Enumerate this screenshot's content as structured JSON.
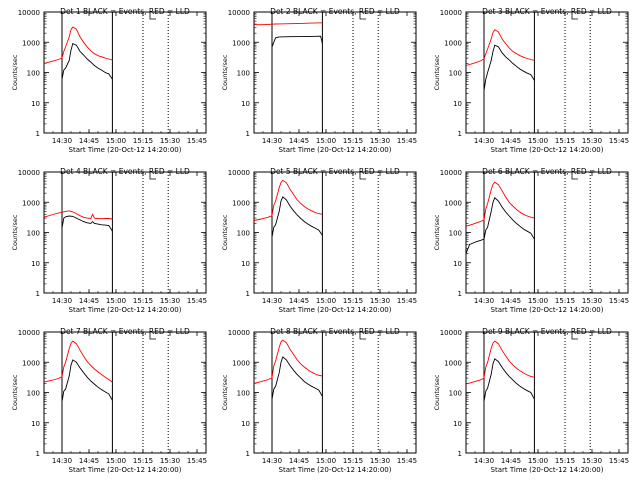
{
  "figure": {
    "ylabel": "Counts/sec",
    "xlabel": "Start Time (20-Oct-12 14:20:00)",
    "yticks": [
      "1",
      "10",
      "100",
      "1000",
      "10000"
    ],
    "xticks": [
      "14:30",
      "14:45",
      "15:00",
      "15:15",
      "15:30",
      "15:45"
    ],
    "colors": {
      "events": "#000000",
      "lld": "#ff0000",
      "axes": "#000000"
    }
  },
  "chart_data": [
    {
      "type": "line",
      "title": "Det 1 BLACK = Events, RED = LLD",
      "xlabel": "Start Time (20-Oct-12 14:20:00)",
      "ylabel": "Counts/sec",
      "yscale": "log",
      "ylim": [
        1,
        10000
      ],
      "x_range_minutes": [
        0,
        90
      ],
      "vlines_solid": [
        10,
        38
      ],
      "vlines_dotted": [
        55,
        69
      ],
      "series": [
        {
          "name": "Events",
          "color": "#000000",
          "x": [
            10,
            11,
            12,
            14,
            15,
            16,
            18,
            20,
            22,
            24,
            26,
            28,
            30,
            32,
            34,
            36,
            38
          ],
          "y": [
            60,
            120,
            140,
            250,
            550,
            900,
            800,
            500,
            380,
            280,
            220,
            170,
            140,
            120,
            100,
            90,
            60
          ]
        },
        {
          "name": "LLD",
          "color": "#ff0000",
          "x": [
            0,
            4,
            8,
            10,
            11,
            12,
            14,
            15,
            16,
            18,
            20,
            22,
            24,
            26,
            28,
            30,
            32,
            34,
            36,
            38
          ],
          "y": [
            200,
            230,
            270,
            300,
            500,
            700,
            1500,
            2600,
            3200,
            2700,
            1500,
            1000,
            700,
            520,
            420,
            360,
            330,
            300,
            280,
            260
          ]
        }
      ]
    },
    {
      "type": "line",
      "title": "Det 2 BLACK = Events, RED = LLD",
      "xlabel": "Start Time (20-Oct-12 14:20:00)",
      "ylabel": "Counts/sec",
      "yscale": "log",
      "ylim": [
        1,
        10000
      ],
      "x_range_minutes": [
        0,
        90
      ],
      "vlines_solid": [
        10,
        38
      ],
      "vlines_dotted": [
        55,
        69
      ],
      "series": [
        {
          "name": "Events",
          "color": "#000000",
          "x": [
            10,
            11,
            12,
            14,
            20,
            26,
            32,
            37,
            38
          ],
          "y": [
            700,
            1000,
            1400,
            1500,
            1520,
            1540,
            1560,
            1580,
            900
          ]
        },
        {
          "name": "LLD",
          "color": "#ff0000",
          "x": [
            0,
            4,
            8,
            10,
            12,
            14,
            20,
            26,
            32,
            38
          ],
          "y": [
            3800,
            3800,
            3900,
            3950,
            4000,
            4050,
            4100,
            4200,
            4300,
            4400
          ]
        }
      ]
    },
    {
      "type": "line",
      "title": "Det 3 BLACK = Events, RED = LLD",
      "xlabel": "Start Time (20-Oct-12 14:20:00)",
      "ylabel": "Counts/sec",
      "yscale": "log",
      "ylim": [
        1,
        10000
      ],
      "x_range_minutes": [
        0,
        90
      ],
      "vlines_solid": [
        10,
        38
      ],
      "vlines_dotted": [
        55,
        69
      ],
      "series": [
        {
          "name": "Events",
          "color": "#000000",
          "x": [
            10,
            11,
            12,
            14,
            15,
            16,
            18,
            20,
            22,
            24,
            26,
            28,
            30,
            32,
            34,
            36,
            38
          ],
          "y": [
            25,
            60,
            100,
            250,
            500,
            800,
            700,
            450,
            330,
            260,
            200,
            160,
            130,
            110,
            95,
            85,
            55
          ]
        },
        {
          "name": "LLD",
          "color": "#ff0000",
          "x": [
            0,
            4,
            8,
            10,
            11,
            12,
            14,
            15,
            16,
            18,
            20,
            22,
            24,
            26,
            28,
            30,
            32,
            34,
            36,
            38
          ],
          "y": [
            170,
            200,
            240,
            280,
            420,
            600,
            1300,
            2100,
            2600,
            2200,
            1300,
            900,
            650,
            500,
            420,
            360,
            320,
            290,
            270,
            250
          ]
        }
      ]
    },
    {
      "type": "line",
      "title": "Det 4 BLACK = Events, RED = LLD",
      "xlabel": "Start Time (20-Oct-12 14:20:00)",
      "ylabel": "Counts/sec",
      "yscale": "log",
      "ylim": [
        1,
        10000
      ],
      "x_range_minutes": [
        0,
        90
      ],
      "vlines_solid": [
        10,
        38
      ],
      "vlines_dotted": [
        55,
        69
      ],
      "series": [
        {
          "name": "Events",
          "color": "#000000",
          "x": [
            10,
            11,
            12,
            14,
            16,
            18,
            20,
            22,
            24,
            26,
            27,
            28,
            30,
            32,
            34,
            36,
            38
          ],
          "y": [
            140,
            300,
            330,
            350,
            340,
            300,
            260,
            230,
            210,
            200,
            230,
            200,
            190,
            180,
            175,
            170,
            110
          ]
        },
        {
          "name": "LLD",
          "color": "#ff0000",
          "x": [
            0,
            4,
            8,
            10,
            12,
            14,
            16,
            18,
            20,
            22,
            24,
            26,
            27,
            28,
            30,
            32,
            34,
            36,
            38
          ],
          "y": [
            320,
            380,
            440,
            470,
            500,
            520,
            480,
            420,
            360,
            320,
            300,
            290,
            400,
            300,
            290,
            285,
            290,
            290,
            280
          ]
        }
      ]
    },
    {
      "type": "line",
      "title": "Det 5 BLACK = Events, RED = LLD",
      "xlabel": "Start Time (20-Oct-12 14:20:00)",
      "ylabel": "Counts/sec",
      "yscale": "log",
      "ylim": [
        1,
        10000
      ],
      "x_range_minutes": [
        0,
        90
      ],
      "vlines_solid": [
        10,
        38
      ],
      "vlines_dotted": [
        55,
        69
      ],
      "series": [
        {
          "name": "Events",
          "color": "#000000",
          "x": [
            10,
            11,
            12,
            14,
            15,
            16,
            18,
            20,
            22,
            24,
            26,
            28,
            30,
            32,
            34,
            36,
            38
          ],
          "y": [
            70,
            150,
            180,
            500,
            1100,
            1500,
            1200,
            750,
            520,
            380,
            290,
            230,
            190,
            160,
            140,
            120,
            80
          ]
        },
        {
          "name": "LLD",
          "color": "#ff0000",
          "x": [
            0,
            4,
            8,
            10,
            11,
            12,
            14,
            15,
            16,
            18,
            20,
            22,
            24,
            26,
            28,
            30,
            32,
            34,
            36,
            38
          ],
          "y": [
            250,
            280,
            320,
            360,
            800,
            1100,
            3000,
            4500,
            5300,
            4400,
            2700,
            1800,
            1200,
            900,
            720,
            600,
            520,
            460,
            420,
            400
          ]
        }
      ]
    },
    {
      "type": "line",
      "title": "Det 6 BLACK = Events, RED = LLD",
      "xlabel": "Start Time (20-Oct-12 14:20:00)",
      "ylabel": "Counts/sec",
      "yscale": "log",
      "ylim": [
        1,
        10000
      ],
      "x_range_minutes": [
        0,
        90
      ],
      "vlines_solid": [
        10,
        38
      ],
      "vlines_dotted": [
        55,
        69
      ],
      "series": [
        {
          "name": "Events",
          "color": "#000000",
          "x": [
            0,
            2,
            4,
            6,
            8,
            10,
            11,
            12,
            14,
            15,
            16,
            18,
            20,
            22,
            24,
            26,
            28,
            30,
            32,
            34,
            36,
            38
          ],
          "y": [
            20,
            40,
            45,
            50,
            55,
            60,
            120,
            150,
            500,
            1000,
            1400,
            1100,
            700,
            480,
            350,
            260,
            200,
            160,
            130,
            110,
            95,
            60
          ]
        },
        {
          "name": "LLD",
          "color": "#ff0000",
          "x": [
            0,
            4,
            8,
            10,
            11,
            12,
            14,
            15,
            16,
            18,
            20,
            22,
            24,
            26,
            28,
            30,
            32,
            34,
            36,
            38
          ],
          "y": [
            160,
            190,
            230,
            260,
            600,
            900,
            2600,
            3900,
            4600,
            3800,
            2400,
            1500,
            1000,
            750,
            580,
            470,
            400,
            350,
            320,
            300
          ]
        }
      ]
    },
    {
      "type": "line",
      "title": "Det 7 BLACK = Events, RED = LLD",
      "xlabel": "Start Time (20-Oct-12 14:20:00)",
      "ylabel": "Counts/sec",
      "yscale": "log",
      "ylim": [
        1,
        10000
      ],
      "x_range_minutes": [
        0,
        90
      ],
      "vlines_solid": [
        10,
        38
      ],
      "vlines_dotted": [
        55,
        69
      ],
      "series": [
        {
          "name": "Events",
          "color": "#000000",
          "x": [
            10,
            11,
            12,
            14,
            15,
            16,
            18,
            20,
            22,
            24,
            26,
            28,
            30,
            32,
            34,
            36,
            38
          ],
          "y": [
            50,
            110,
            130,
            350,
            800,
            1200,
            1000,
            650,
            450,
            320,
            240,
            190,
            150,
            125,
            105,
            90,
            55
          ]
        },
        {
          "name": "LLD",
          "color": "#ff0000",
          "x": [
            0,
            4,
            8,
            10,
            11,
            12,
            14,
            15,
            16,
            18,
            20,
            22,
            24,
            26,
            28,
            30,
            32,
            34,
            36,
            38
          ],
          "y": [
            220,
            250,
            290,
            330,
            700,
            1000,
            2800,
            4200,
            5000,
            4100,
            2500,
            1600,
            1050,
            780,
            600,
            480,
            390,
            320,
            270,
            220
          ]
        }
      ]
    },
    {
      "type": "line",
      "title": "Det 8 BLACK = Events, RED = LLD",
      "xlabel": "Start Time (20-Oct-12 14:20:00)",
      "ylabel": "Counts/sec",
      "yscale": "log",
      "ylim": [
        1,
        10000
      ],
      "x_range_minutes": [
        0,
        90
      ],
      "vlines_solid": [
        10,
        38
      ],
      "vlines_dotted": [
        55,
        69
      ],
      "series": [
        {
          "name": "Events",
          "color": "#000000",
          "x": [
            10,
            11,
            12,
            14,
            15,
            16,
            18,
            20,
            22,
            24,
            26,
            28,
            30,
            32,
            34,
            36,
            38
          ],
          "y": [
            60,
            130,
            160,
            450,
            1000,
            1500,
            1200,
            780,
            540,
            390,
            300,
            230,
            190,
            160,
            140,
            120,
            75
          ]
        },
        {
          "name": "LLD",
          "color": "#ff0000",
          "x": [
            0,
            4,
            8,
            10,
            11,
            12,
            14,
            15,
            16,
            18,
            20,
            22,
            24,
            26,
            28,
            30,
            32,
            34,
            36,
            38
          ],
          "y": [
            200,
            230,
            270,
            310,
            750,
            1100,
            3100,
            4700,
            5400,
            4400,
            2700,
            1800,
            1200,
            880,
            690,
            560,
            470,
            410,
            370,
            350
          ]
        }
      ]
    },
    {
      "type": "line",
      "title": "Det 9 BLACK = Events, RED = LLD",
      "xlabel": "Start Time (20-Oct-12 14:20:00)",
      "ylabel": "Counts/sec",
      "yscale": "log",
      "ylim": [
        1,
        10000
      ],
      "x_range_minutes": [
        0,
        90
      ],
      "vlines_solid": [
        10,
        38
      ],
      "vlines_dotted": [
        55,
        69
      ],
      "series": [
        {
          "name": "Events",
          "color": "#000000",
          "x": [
            10,
            11,
            12,
            14,
            15,
            16,
            18,
            20,
            22,
            24,
            26,
            28,
            30,
            32,
            34,
            36,
            38
          ],
          "y": [
            50,
            110,
            140,
            400,
            900,
            1300,
            1050,
            680,
            470,
            340,
            260,
            200,
            160,
            135,
            115,
            100,
            60
          ]
        },
        {
          "name": "LLD",
          "color": "#ff0000",
          "x": [
            0,
            4,
            8,
            10,
            11,
            12,
            14,
            15,
            16,
            18,
            20,
            22,
            24,
            26,
            28,
            30,
            32,
            34,
            36,
            38
          ],
          "y": [
            190,
            220,
            260,
            300,
            700,
            1000,
            2900,
            4300,
            5000,
            4100,
            2500,
            1650,
            1100,
            820,
            640,
            520,
            440,
            380,
            340,
            320
          ]
        }
      ]
    }
  ]
}
